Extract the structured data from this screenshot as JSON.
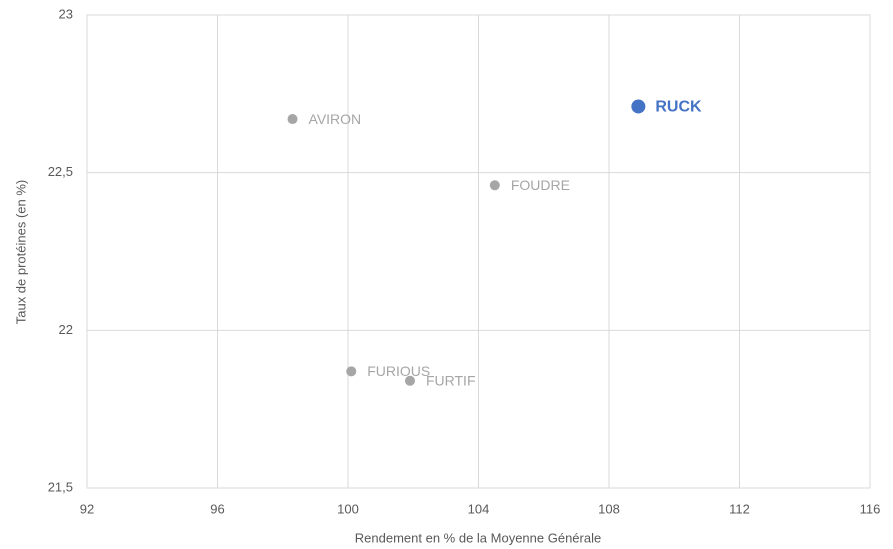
{
  "chart_data": {
    "type": "scatter",
    "x_label": "Rendement en % de la Moyenne Générale",
    "y_label": "Taux de protéines (en %)",
    "point_labels": [
      "AVIRON",
      "FOUDRE",
      "FURIOUS",
      "FURTIF",
      "RUCK"
    ],
    "x": [
      98.3,
      104.5,
      100.1,
      101.9,
      108.9
    ],
    "values": [
      22.67,
      22.46,
      21.87,
      21.84,
      22.71
    ],
    "colors": [
      "#a6a6a6",
      "#a6a6a6",
      "#a6a6a6",
      "#a6a6a6",
      "#4472c4"
    ],
    "highlight": [
      false,
      false,
      false,
      false,
      true
    ],
    "xlim": [
      92,
      116
    ],
    "xticks": [
      92,
      96,
      100,
      104,
      108,
      112,
      116
    ],
    "ylim": [
      21.5,
      23
    ],
    "yticks": [
      {
        "value": 21.5,
        "label": "21,5"
      },
      22,
      {
        "value": 22.5,
        "label": "22,5"
      },
      23
    ],
    "grid": true
  }
}
